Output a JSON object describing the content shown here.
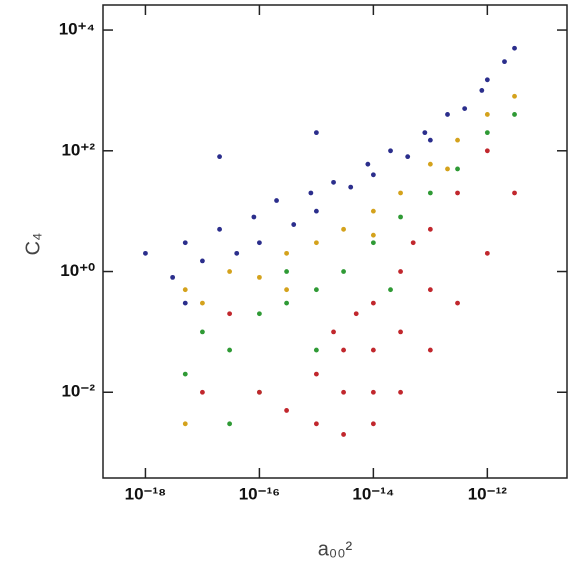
{
  "chart_data": {
    "type": "scatter",
    "x_label": "a₀₀²",
    "y_label": "C₄",
    "xscale": "log",
    "yscale": "log",
    "xlim": [
      1.8e-19,
      2.5e-11
    ],
    "ylim": [
      0.00038,
      26000
    ],
    "xticks": [
      {
        "value": 1e-18,
        "label": "10⁻¹⁸"
      },
      {
        "value": 1e-16,
        "label": "10⁻¹⁶"
      },
      {
        "value": 1e-14,
        "label": "10⁻¹⁴"
      },
      {
        "value": 1e-12,
        "label": "10⁻¹²"
      }
    ],
    "yticks": [
      {
        "value": 0.01,
        "label": "10⁻²"
      },
      {
        "value": 1,
        "label": "10⁺⁰"
      },
      {
        "value": 100,
        "label": "10⁺²"
      },
      {
        "value": 10000,
        "label": "10⁺⁴"
      }
    ],
    "series": [
      {
        "color": "#2b2e8c",
        "x": [
          1e-18,
          3e-18,
          5e-18,
          1e-17,
          2e-17,
          4e-17,
          8e-17,
          1e-16,
          2e-16,
          4e-16,
          8e-16,
          1e-15,
          2e-15,
          4e-15,
          8e-15,
          1e-14,
          2e-14,
          4e-14,
          8e-14,
          1e-13,
          2e-13,
          4e-13,
          8e-13,
          1e-12,
          2e-12,
          3e-12,
          2e-17,
          1e-15,
          5e-18
        ],
        "values": [
          2,
          0.8,
          3,
          1.5,
          5,
          2,
          8,
          3,
          15,
          6,
          20,
          10,
          30,
          25,
          60,
          40,
          100,
          80,
          200,
          150,
          400,
          500,
          1000,
          1500,
          3000,
          5000,
          80,
          200,
          0.3
        ]
      },
      {
        "color": "#d4a21c",
        "x": [
          5e-18,
          1e-17,
          3e-17,
          1e-16,
          3e-16,
          1e-15,
          3e-15,
          1e-14,
          3e-14,
          1e-13,
          3e-13,
          1e-12,
          3e-12,
          3e-16,
          1e-14,
          2e-13,
          5e-18
        ],
        "values": [
          0.5,
          0.3,
          1,
          0.8,
          2,
          3,
          5,
          10,
          20,
          60,
          150,
          400,
          800,
          0.5,
          4,
          50,
          0.003
        ]
      },
      {
        "color": "#2f9a35",
        "x": [
          1e-17,
          3e-17,
          1e-16,
          3e-16,
          1e-15,
          3e-15,
          1e-14,
          3e-14,
          1e-13,
          3e-13,
          1e-12,
          3e-12,
          1e-16,
          3e-17,
          1e-15,
          3e-16,
          5e-18,
          2e-14
        ],
        "values": [
          0.1,
          0.05,
          0.2,
          0.3,
          0.5,
          1,
          3,
          8,
          20,
          50,
          200,
          400,
          0.01,
          0.003,
          0.05,
          1,
          0.02,
          0.5
        ]
      },
      {
        "color": "#c1272d",
        "x": [
          1e-16,
          3e-16,
          1e-15,
          3e-15,
          1e-14,
          3e-14,
          1e-13,
          3e-13,
          1e-12,
          3e-12,
          1e-12,
          3e-13,
          1e-13,
          3e-14,
          1e-14,
          3e-15,
          1e-15,
          3e-15,
          1e-14,
          1e-14,
          3e-14,
          1e-13,
          5e-15,
          2e-15,
          5e-14,
          3e-17,
          1e-17
        ],
        "values": [
          0.01,
          0.005,
          0.003,
          0.002,
          0.003,
          0.01,
          0.05,
          0.3,
          2,
          20,
          100,
          20,
          5,
          1,
          0.3,
          0.05,
          0.02,
          0.01,
          0.05,
          0.01,
          0.1,
          0.5,
          0.2,
          0.1,
          3,
          0.2,
          0.01
        ]
      }
    ]
  }
}
